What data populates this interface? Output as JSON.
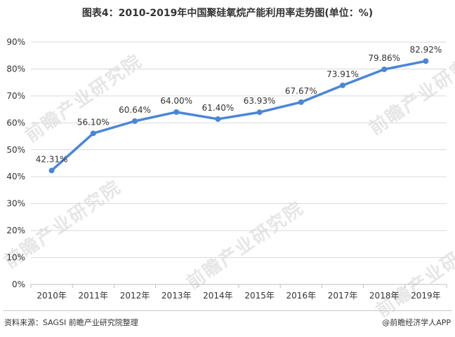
{
  "title": "图表4：2010-2019年中国聚硅氧烷产能利用率走势图(单位：%)",
  "footer": {
    "source": "资料来源：SAGSI 前瞻产业研究院整理",
    "brand": "@前瞻经济学人APP"
  },
  "watermark": "前瞻产业研究院",
  "colors": {
    "line": "#4a86d8",
    "grid": "#d9d9d9",
    "axis": "#bfbfbf",
    "text": "#333333"
  },
  "chart_data": {
    "type": "line",
    "categories": [
      "2010年",
      "2011年",
      "2012年",
      "2013年",
      "2014年",
      "2015年",
      "2016年",
      "2017年",
      "2018年",
      "2019年"
    ],
    "values": [
      42.31,
      56.1,
      60.64,
      64.0,
      61.4,
      63.93,
      67.67,
      73.91,
      79.86,
      82.92
    ],
    "data_labels": [
      "42.31%",
      "56.10%",
      "60.64%",
      "64.00%",
      "61.40%",
      "63.93%",
      "67.67%",
      "73.91%",
      "79.86%",
      "82.92%"
    ],
    "yticks": [
      "0%",
      "10%",
      "20%",
      "30%",
      "40%",
      "50%",
      "60%",
      "70%",
      "80%",
      "90%"
    ],
    "ylim": [
      0,
      90
    ],
    "grid": true,
    "legend": "none"
  }
}
